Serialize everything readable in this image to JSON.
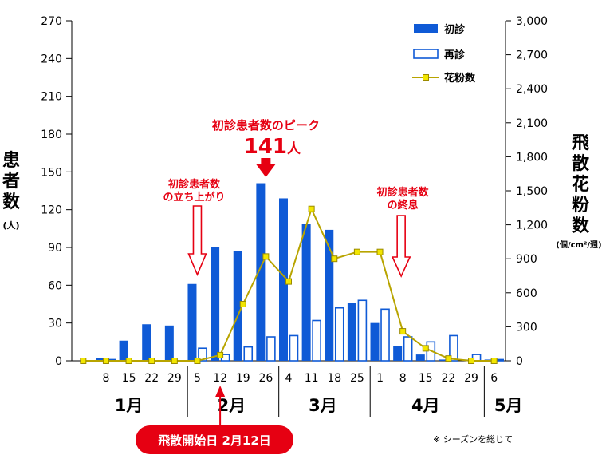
{
  "chart_data": {
    "type": "bar",
    "left_axis": {
      "title": [
        "患",
        "者",
        "数"
      ],
      "unit": "(人)",
      "ticks": [
        0,
        30,
        60,
        90,
        120,
        150,
        180,
        210,
        240,
        270
      ],
      "ylim": [
        0,
        270
      ]
    },
    "right_axis": {
      "title": [
        "飛",
        "散",
        "花",
        "粉",
        "数"
      ],
      "unit": "(個/cm²/週)",
      "ticks": [
        "0",
        "300",
        "600",
        "900",
        "1,200",
        "1,500",
        "1,800",
        "2,100",
        "2,400",
        "2,700",
        "3,000"
      ],
      "ylim": [
        0,
        3000
      ]
    },
    "categories": [
      "",
      "8",
      "15",
      "22",
      "29",
      "5",
      "12",
      "19",
      "26",
      "4",
      "11",
      "18",
      "25",
      "1",
      "8",
      "15",
      "22",
      "29",
      "6"
    ],
    "months": [
      {
        "label": "1月",
        "from": 0,
        "to": 4
      },
      {
        "label": "2月",
        "from": 5,
        "to": 8
      },
      {
        "label": "3月",
        "from": 9,
        "to": 12
      },
      {
        "label": "4月",
        "from": 13,
        "to": 17
      },
      {
        "label": "5月",
        "from": 18,
        "to": 18
      }
    ],
    "series": [
      {
        "name": "初診",
        "axis": "left",
        "kind": "bar-filled",
        "color": "#0f5ad6",
        "values": [
          0,
          2,
          16,
          29,
          28,
          61,
          90,
          87,
          141,
          129,
          109,
          104,
          46,
          30,
          12,
          5,
          1,
          1,
          1
        ]
      },
      {
        "name": "再診",
        "axis": "left",
        "kind": "bar-outline",
        "color": "#0f5ad6",
        "values": [
          0,
          1,
          0,
          0,
          0,
          10,
          5,
          11,
          19,
          20,
          32,
          42,
          48,
          41,
          19,
          15,
          20,
          5,
          1
        ]
      },
      {
        "name": "花粉数",
        "axis": "right",
        "kind": "line",
        "color": "#b8a400",
        "values": [
          0,
          0,
          0,
          0,
          0,
          0,
          50,
          500,
          920,
          700,
          1340,
          900,
          960,
          960,
          260,
          110,
          20,
          0,
          0
        ]
      }
    ],
    "annotations": {
      "peak_line1": "初診患者数のピーク",
      "peak_value": "141",
      "peak_unit": "人",
      "rise_line1": "初診患者数",
      "rise_line2": "の立ち上がり",
      "end_line1": "初診患者数",
      "end_line2": "の終息"
    },
    "start_label": "飛散開始日 2月12日",
    "note": "※ シーズンを総じて"
  }
}
